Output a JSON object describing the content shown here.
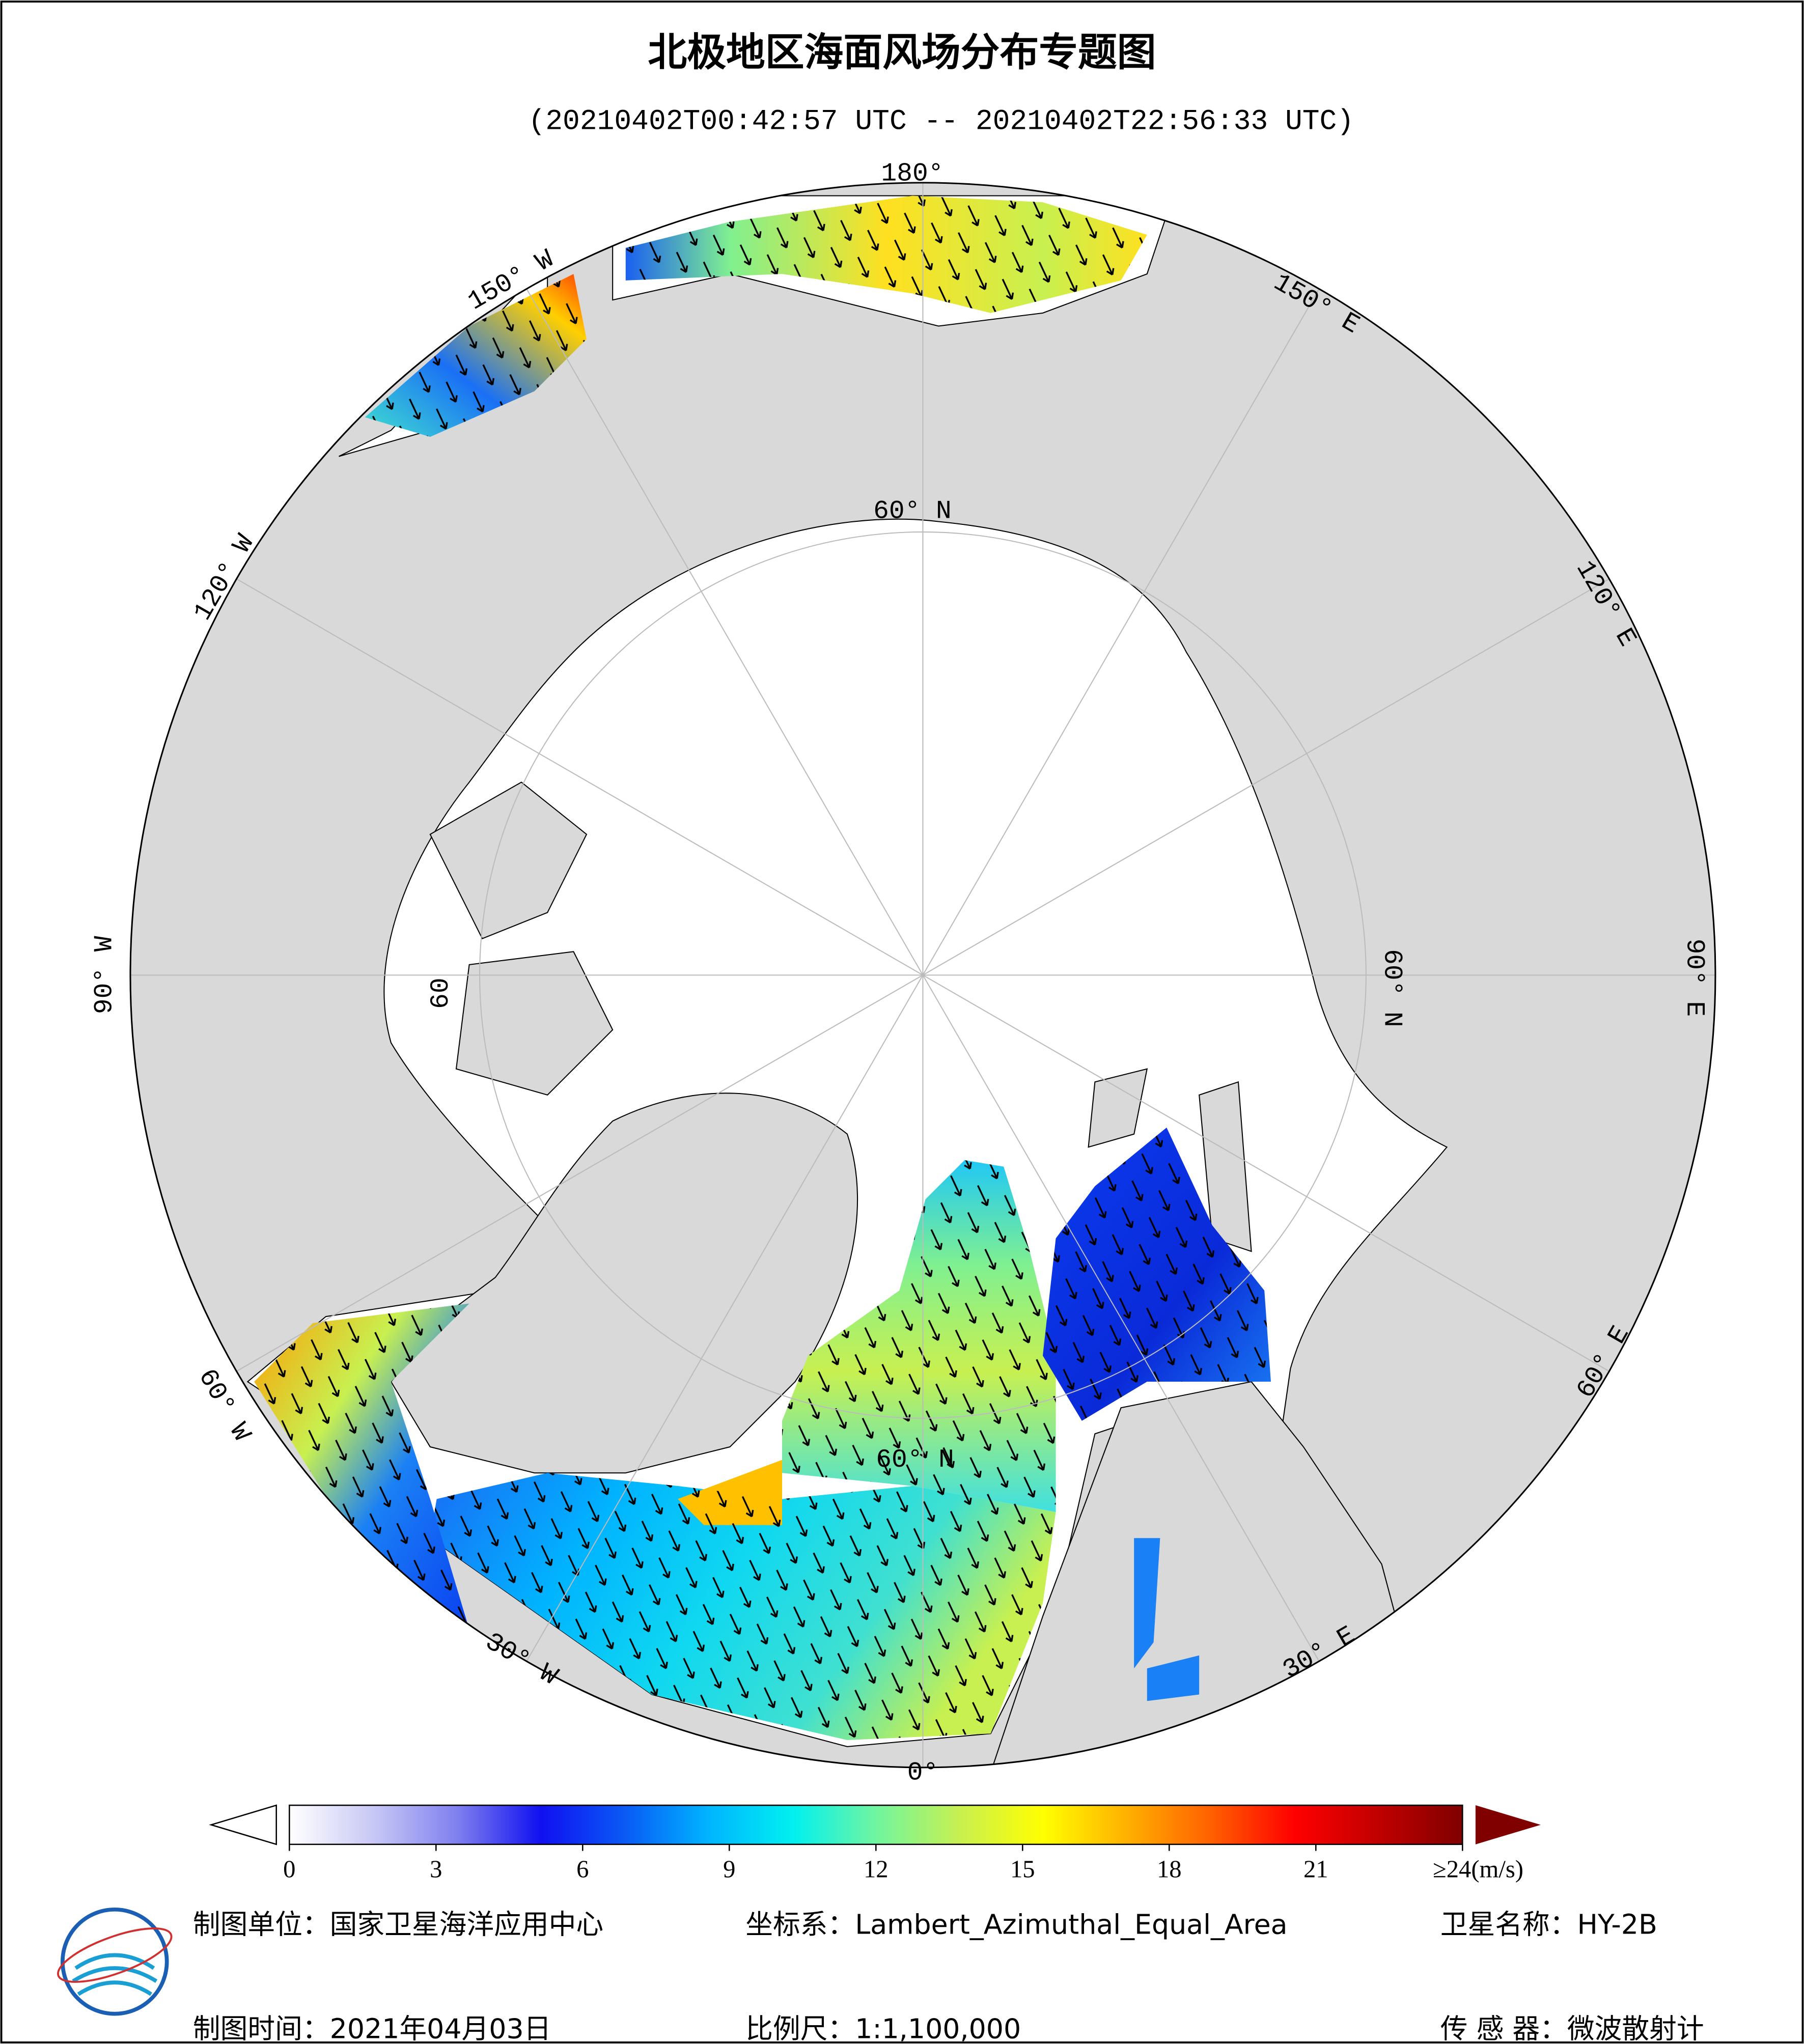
{
  "header": {
    "title": "北极地区海面风场分布专题图",
    "subtitle": "(20210402T00:42:57 UTC -- 20210402T22:56:33 UTC)"
  },
  "map": {
    "graticule_labels": [
      "180°",
      "150° E",
      "120° E",
      "90° E",
      "60° E",
      "30° E",
      "0°",
      "30° W",
      "60° W",
      "90° W",
      "120° W",
      "150° W",
      "60° N",
      "60° N",
      "60° N",
      "60"
    ]
  },
  "colorbar": {
    "range": [
      0,
      24
    ],
    "colors": [
      "#ffffff",
      "#c8c8f5",
      "#8080ef",
      "#1010f0",
      "#0a5af5",
      "#00b4ff",
      "#00f0f0",
      "#70f5a0",
      "#c8f050",
      "#ffff00",
      "#ffb000",
      "#ff6000",
      "#ff0000",
      "#c00000",
      "#800000"
    ],
    "ticks": [
      0,
      3,
      6,
      9,
      12,
      15,
      18,
      21,
      {
        "value": 24,
        "label": "≥24(m/s)"
      }
    ]
  },
  "footer": {
    "left_top": "制图单位：国家卫星海洋应用中心",
    "middle_top": "坐标系：Lambert_Azimuthal_Equal_Area",
    "right_top": "卫星名称：HY-2B",
    "left_bottom": "制图时间：2021年04月03日",
    "middle_bottom": "比例尺：1:1,100,000",
    "right_bottom": "传 感 器：微波散射计"
  }
}
